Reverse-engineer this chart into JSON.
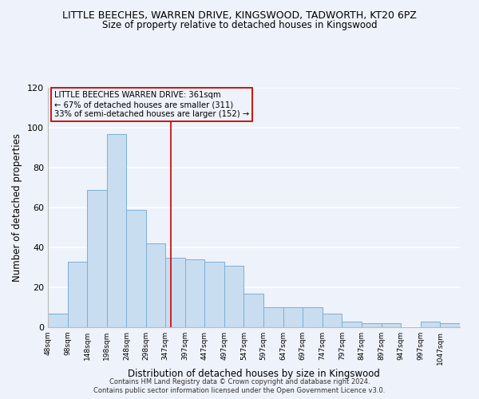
{
  "title": "LITTLE BEECHES, WARREN DRIVE, KINGSWOOD, TADWORTH, KT20 6PZ",
  "subtitle": "Size of property relative to detached houses in Kingswood",
  "xlabel": "Distribution of detached houses by size in Kingswood",
  "ylabel": "Number of detached properties",
  "bar_color": "#c8ddf0",
  "bar_edge_color": "#7bafd4",
  "bins": [
    48,
    98,
    148,
    198,
    248,
    298,
    347,
    397,
    447,
    497,
    547,
    597,
    647,
    697,
    747,
    797,
    847,
    897,
    947,
    997,
    1047
  ],
  "counts": [
    7,
    33,
    69,
    97,
    59,
    42,
    35,
    34,
    33,
    31,
    17,
    10,
    10,
    10,
    7,
    3,
    2,
    2,
    0,
    3,
    2
  ],
  "xlim_left": 48,
  "xlim_right": 1097,
  "ylim_top": 120,
  "marker_x": 361,
  "marker_color": "#cc0000",
  "annotation_lines": [
    "LITTLE BEECHES WARREN DRIVE: 361sqm",
    "← 67% of detached houses are smaller (311)",
    "33% of semi-detached houses are larger (152) →"
  ],
  "annotation_box_edge": "#cc0000",
  "footer_line1": "Contains HM Land Registry data © Crown copyright and database right 2024.",
  "footer_line2": "Contains public sector information licensed under the Open Government Licence v3.0.",
  "background_color": "#eef2fa",
  "grid_color": "#ffffff",
  "tick_labels": [
    "48sqm",
    "98sqm",
    "148sqm",
    "198sqm",
    "248sqm",
    "298sqm",
    "347sqm",
    "397sqm",
    "447sqm",
    "497sqm",
    "547sqm",
    "597sqm",
    "647sqm",
    "697sqm",
    "747sqm",
    "797sqm",
    "847sqm",
    "897sqm",
    "947sqm",
    "997sqm",
    "1047sqm"
  ],
  "yticks": [
    0,
    20,
    40,
    60,
    80,
    100,
    120
  ]
}
